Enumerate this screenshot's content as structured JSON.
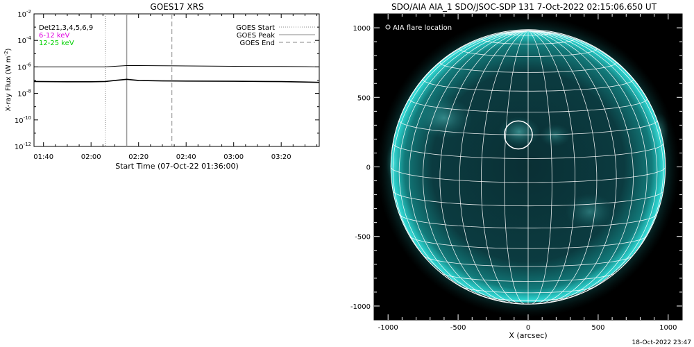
{
  "footer": {
    "timestamp": "18-Oct-2022 23:47"
  },
  "chart_data": [
    {
      "type": "line",
      "title": "GOES17 XRS",
      "ylabel": "X-ray Flux (W m-2)",
      "ylabel_parts": {
        "main": "X-ray Flux (W m",
        "sup": "-2",
        "close": ")"
      },
      "xlabel": "Start Time (07-Oct-22 01:36:00)",
      "y_scale": "log",
      "ylim": [
        1e-12,
        0.01
      ],
      "y_ticks": [
        {
          "base": "10",
          "exp": "-2",
          "value": 0.01
        },
        {
          "base": "10",
          "exp": "-4",
          "value": 0.0001
        },
        {
          "base": "10",
          "exp": "-6",
          "value": 1e-06
        },
        {
          "base": "10",
          "exp": "-8",
          "value": 1e-08
        },
        {
          "base": "10",
          "exp": "-10",
          "value": 1e-10
        },
        {
          "base": "10",
          "exp": "-12",
          "value": 1e-12
        }
      ],
      "xlim": [
        "01:36",
        "03:36"
      ],
      "x_ticks": [
        "01:40",
        "02:00",
        "02:20",
        "02:40",
        "03:00",
        "03:20"
      ],
      "annotations": [
        {
          "text": "Det21,3,4,5,6,9",
          "color": "#000000"
        },
        {
          "text": "6-12 keV",
          "color": "#e000e0"
        },
        {
          "text": "12-25 keV",
          "color": "#00d000"
        }
      ],
      "legend": {
        "placement": "top-right",
        "items": [
          {
            "label": "GOES Start",
            "style": "dotted",
            "color": "#888888"
          },
          {
            "label": "GOES Peak",
            "style": "solid",
            "color": "#888888"
          },
          {
            "label": "GOES End",
            "style": "dashed",
            "color": "#888888"
          }
        ]
      },
      "vlines": [
        {
          "name": "GOES Start",
          "x": "02:06",
          "style": "dotted"
        },
        {
          "name": "GOES Peak",
          "x": "02:15",
          "style": "solid"
        },
        {
          "name": "GOES End",
          "x": "02:34",
          "style": "dashed"
        }
      ],
      "series": [
        {
          "x": [
            "01:36",
            "01:50",
            "02:00",
            "02:06",
            "02:10",
            "02:15",
            "02:20",
            "02:30",
            "02:40",
            "03:00",
            "03:20",
            "03:30",
            "03:36"
          ],
          "values": [
            1e-06,
            1e-06,
            1e-06,
            1e-06,
            1.12e-06,
            1.25e-06,
            1.25e-06,
            1.22e-06,
            1.18e-06,
            1.12e-06,
            1.08e-06,
            1.05e-06,
            1e-06
          ]
        },
        {
          "x": [
            "01:36",
            "01:50",
            "02:00",
            "02:06",
            "02:10",
            "02:15",
            "02:20",
            "02:30",
            "02:40",
            "03:00",
            "03:20",
            "03:30",
            "03:36"
          ],
          "values": [
            8e-08,
            7.6e-08,
            7.6e-08,
            8e-08,
            9.5e-08,
            1.15e-07,
            9.5e-08,
            8.8e-08,
            8.6e-08,
            8.2e-08,
            7.8e-08,
            7.2e-08,
            6.8e-08
          ]
        }
      ]
    },
    {
      "type": "scatter",
      "title": "SDO/AIA AIA_1 SDO/JSOC-SDP 131  7-Oct-2022 02:15:06.650 UT",
      "xlabel": "X (arcsec)",
      "ylabel": "",
      "xlim": [
        -1100,
        1100
      ],
      "ylim": [
        -1100,
        1100
      ],
      "x_ticks": [
        -1000,
        -500,
        0,
        500,
        1000
      ],
      "y_ticks": [
        1000,
        500,
        0,
        -500,
        -1000
      ],
      "legend": {
        "placement": "top-left",
        "items": [
          {
            "label": "AIA flare location",
            "marker": "open-circle",
            "color": "#ffffff"
          }
        ]
      },
      "solar_disk": {
        "center": [
          0,
          0
        ],
        "radius": 980,
        "colors": {
          "disk": "#0a3a40",
          "limb": "#1fc4c0",
          "grid": "#ffffff",
          "background": "#000000"
        }
      },
      "flare": {
        "x": -70,
        "y": 230,
        "radius": 100
      }
    }
  ]
}
